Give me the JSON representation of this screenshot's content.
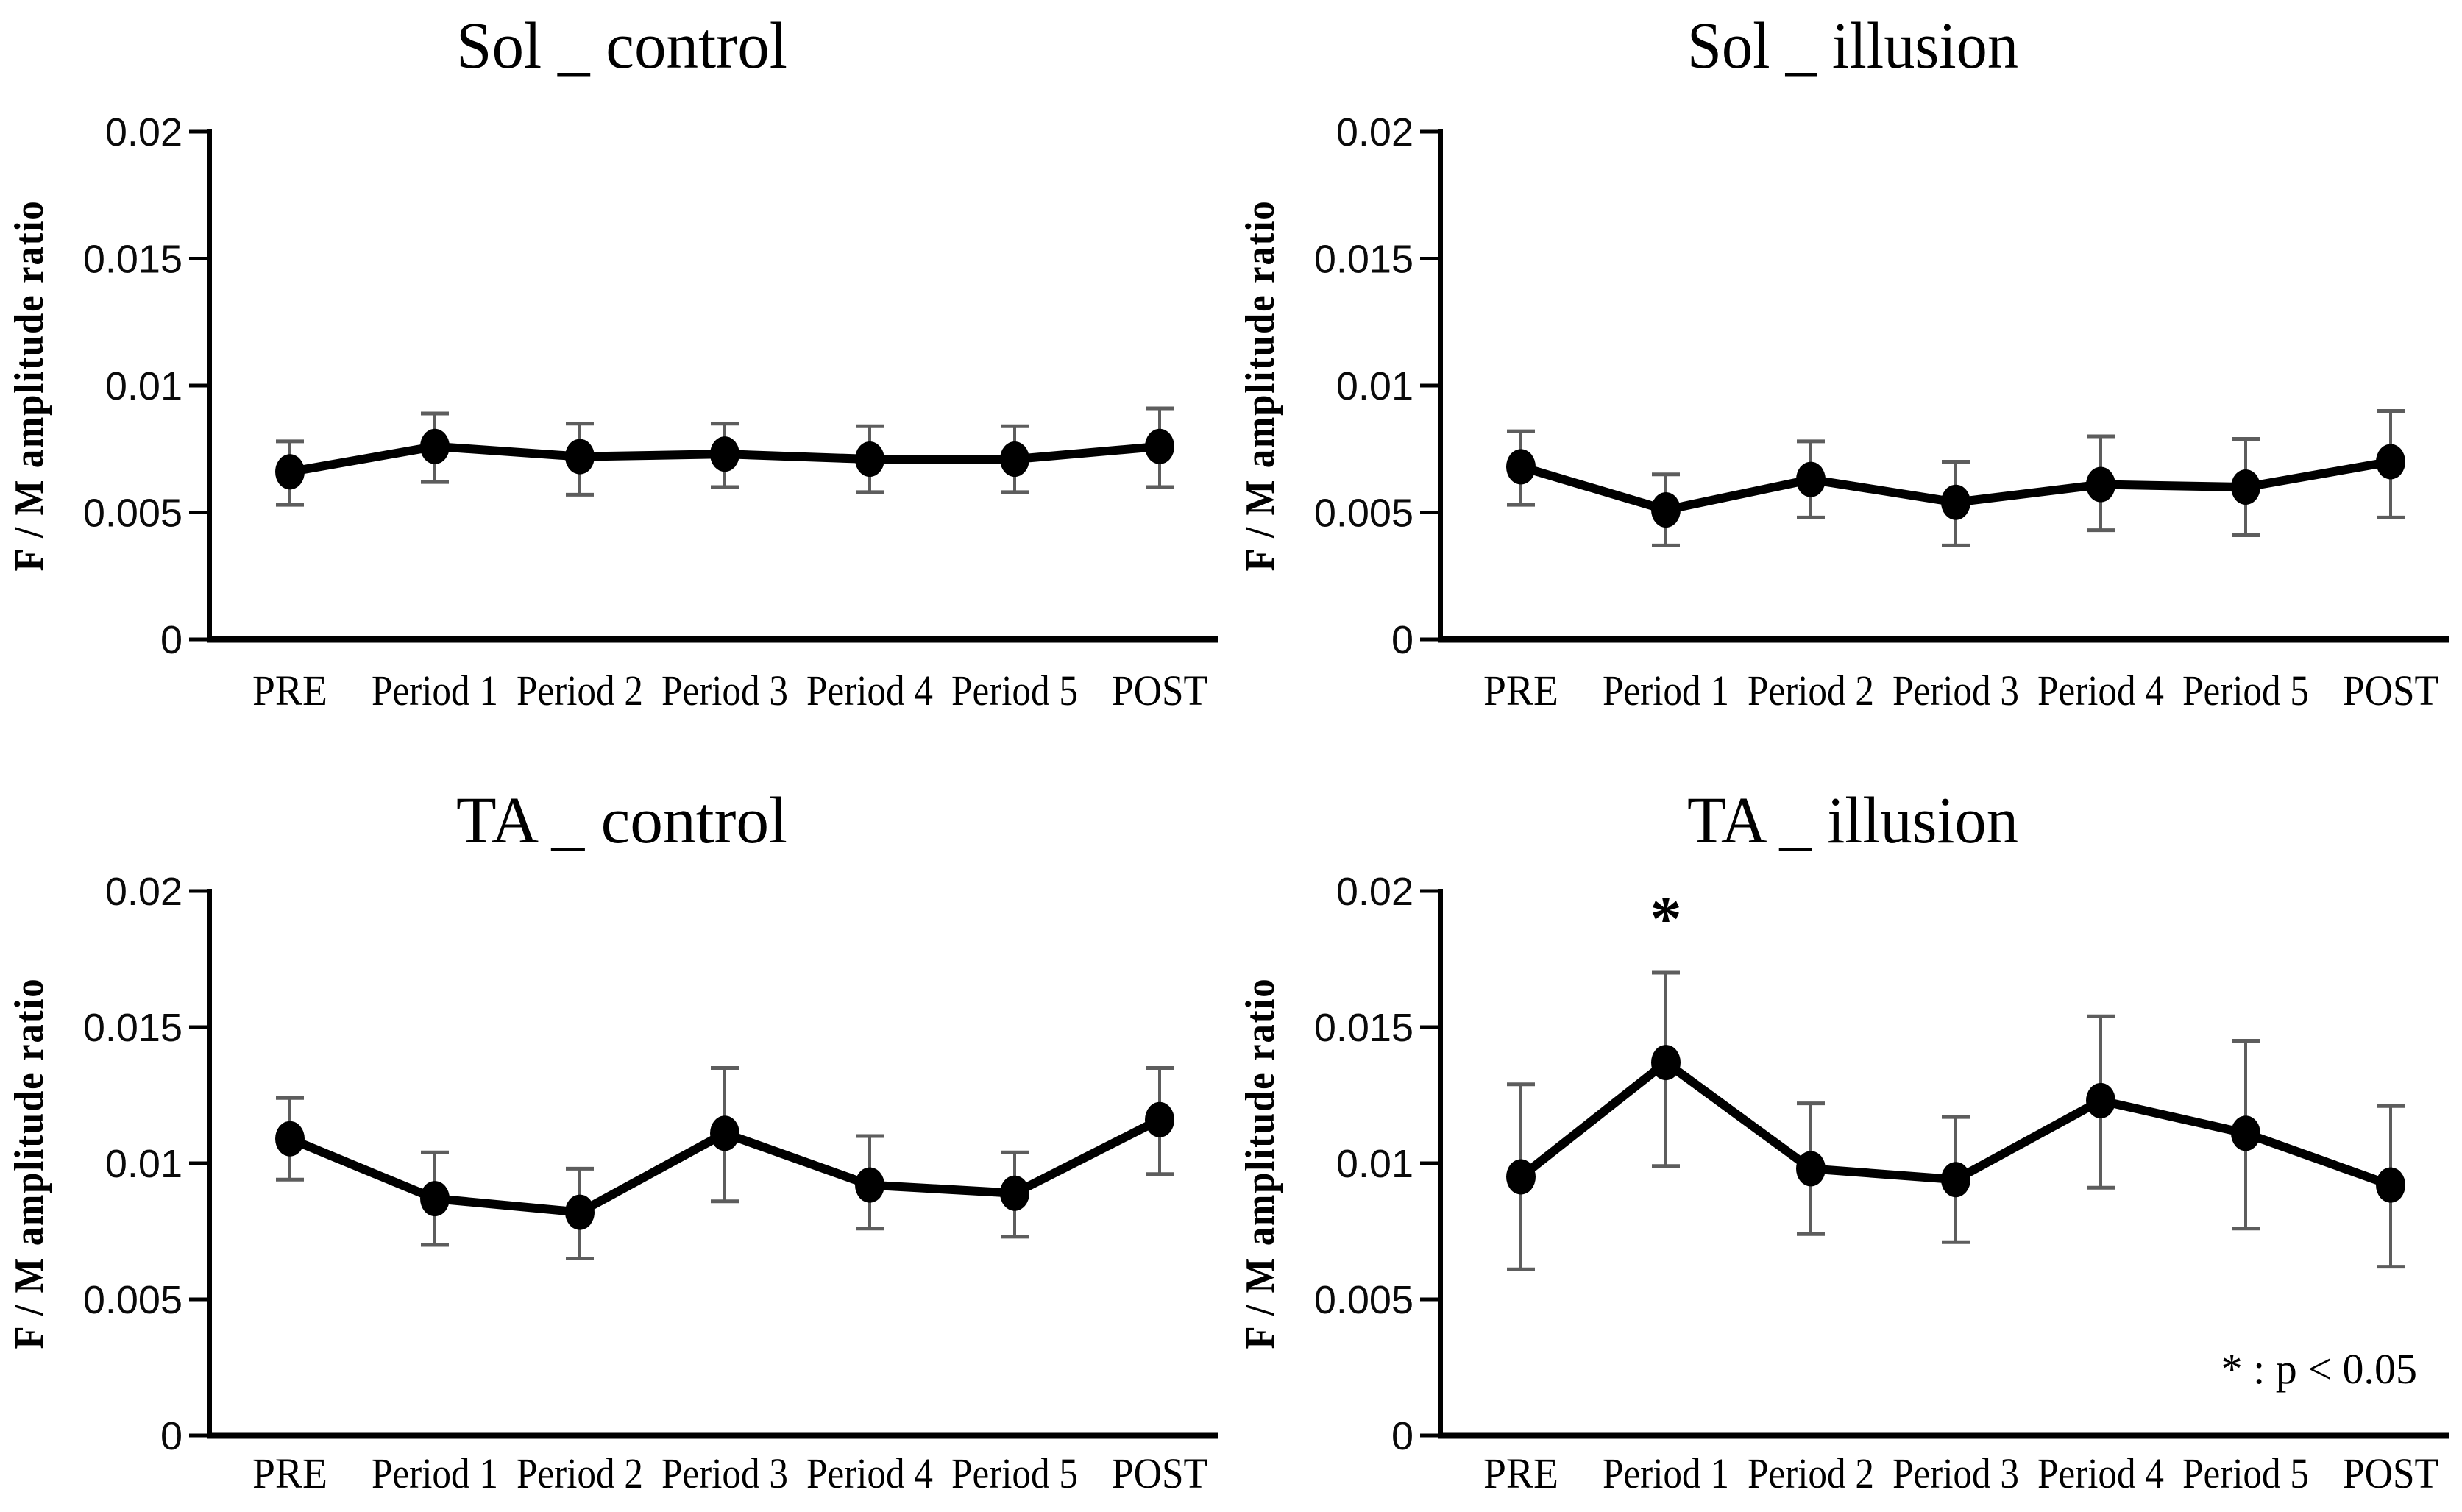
{
  "figure": {
    "background": "#ffffff",
    "line_color": "#000000",
    "marker_color": "#000000",
    "errorbar_color": "#5d5d5d",
    "significance_note": "* : p < 0.05",
    "significance_symbol": "*"
  },
  "chart_data": [
    {
      "id": "sol-control",
      "type": "line",
      "title": "Sol _ control",
      "xlabel": "",
      "ylabel": "F / M amplitude ratio",
      "categories": [
        "PRE",
        "Period 1",
        "Period 2",
        "Period 3",
        "Period 4",
        "Period 5",
        "POST"
      ],
      "values": [
        0.0066,
        0.0076,
        0.0072,
        0.0073,
        0.0071,
        0.0071,
        0.0076
      ],
      "error_upper": [
        0.0078,
        0.0089,
        0.0085,
        0.0085,
        0.0084,
        0.0084,
        0.0091
      ],
      "error_lower": [
        0.0053,
        0.0062,
        0.0057,
        0.006,
        0.0058,
        0.0058,
        0.006
      ],
      "ylim": [
        0,
        0.02
      ],
      "yticks": [
        0,
        0.005,
        0.01,
        0.015,
        0.02
      ],
      "ytick_labels": [
        "0",
        "0.005",
        "0.01",
        "0.015",
        "0.02"
      ],
      "grid": false,
      "legend": null,
      "annotations": [],
      "note": ""
    },
    {
      "id": "sol-illusion",
      "type": "line",
      "title": "Sol _ illusion",
      "xlabel": "",
      "ylabel": "F / M amplitude ratio",
      "categories": [
        "PRE",
        "Period 1",
        "Period 2",
        "Period 3",
        "Period 4",
        "Period 5",
        "POST"
      ],
      "values": [
        0.0068,
        0.0051,
        0.0063,
        0.0054,
        0.0061,
        0.006,
        0.007
      ],
      "error_upper": [
        0.0082,
        0.0065,
        0.0078,
        0.007,
        0.008,
        0.0079,
        0.009
      ],
      "error_lower": [
        0.0053,
        0.0037,
        0.0048,
        0.0037,
        0.0043,
        0.0041,
        0.0048
      ],
      "ylim": [
        0,
        0.02
      ],
      "yticks": [
        0,
        0.005,
        0.01,
        0.015,
        0.02
      ],
      "ytick_labels": [
        "0",
        "0.005",
        "0.01",
        "0.015",
        "0.02"
      ],
      "grid": false,
      "legend": null,
      "annotations": [],
      "note": ""
    },
    {
      "id": "ta-control",
      "type": "line",
      "title": "TA _ control",
      "xlabel": "",
      "ylabel": "F / M amplitude ratio",
      "categories": [
        "PRE",
        "Period 1",
        "Period 2",
        "Period 3",
        "Period 4",
        "Period 5",
        "POST"
      ],
      "values": [
        0.0109,
        0.0087,
        0.0082,
        0.0111,
        0.0092,
        0.0089,
        0.0116
      ],
      "error_upper": [
        0.0124,
        0.0104,
        0.0098,
        0.0135,
        0.011,
        0.0104,
        0.0135
      ],
      "error_lower": [
        0.0094,
        0.007,
        0.0065,
        0.0086,
        0.0076,
        0.0073,
        0.0096
      ],
      "ylim": [
        0,
        0.02
      ],
      "yticks": [
        0,
        0.005,
        0.01,
        0.015,
        0.02
      ],
      "ytick_labels": [
        "0",
        "0.005",
        "0.01",
        "0.015",
        "0.02"
      ],
      "grid": false,
      "legend": null,
      "annotations": [],
      "note": ""
    },
    {
      "id": "ta-illusion",
      "type": "line",
      "title": "TA _ illusion",
      "xlabel": "",
      "ylabel": "F / M amplitude ratio",
      "categories": [
        "PRE",
        "Period 1",
        "Period 2",
        "Period 3",
        "Period 4",
        "Period 5",
        "POST"
      ],
      "values": [
        0.0095,
        0.0137,
        0.0098,
        0.0094,
        0.0123,
        0.0111,
        0.0092
      ],
      "error_upper": [
        0.0129,
        0.017,
        0.0122,
        0.0117,
        0.0154,
        0.0145,
        0.0121
      ],
      "error_lower": [
        0.0061,
        0.0099,
        0.0074,
        0.0071,
        0.0091,
        0.0076,
        0.0062
      ],
      "ylim": [
        0,
        0.02
      ],
      "yticks": [
        0,
        0.005,
        0.01,
        0.015,
        0.02
      ],
      "ytick_labels": [
        "0",
        "0.005",
        "0.01",
        "0.015",
        "0.02"
      ],
      "grid": false,
      "legend": null,
      "annotations": [
        {
          "text": "*",
          "category": "Period 1",
          "y": 0.0182
        }
      ],
      "note": "* : p < 0.05"
    }
  ]
}
